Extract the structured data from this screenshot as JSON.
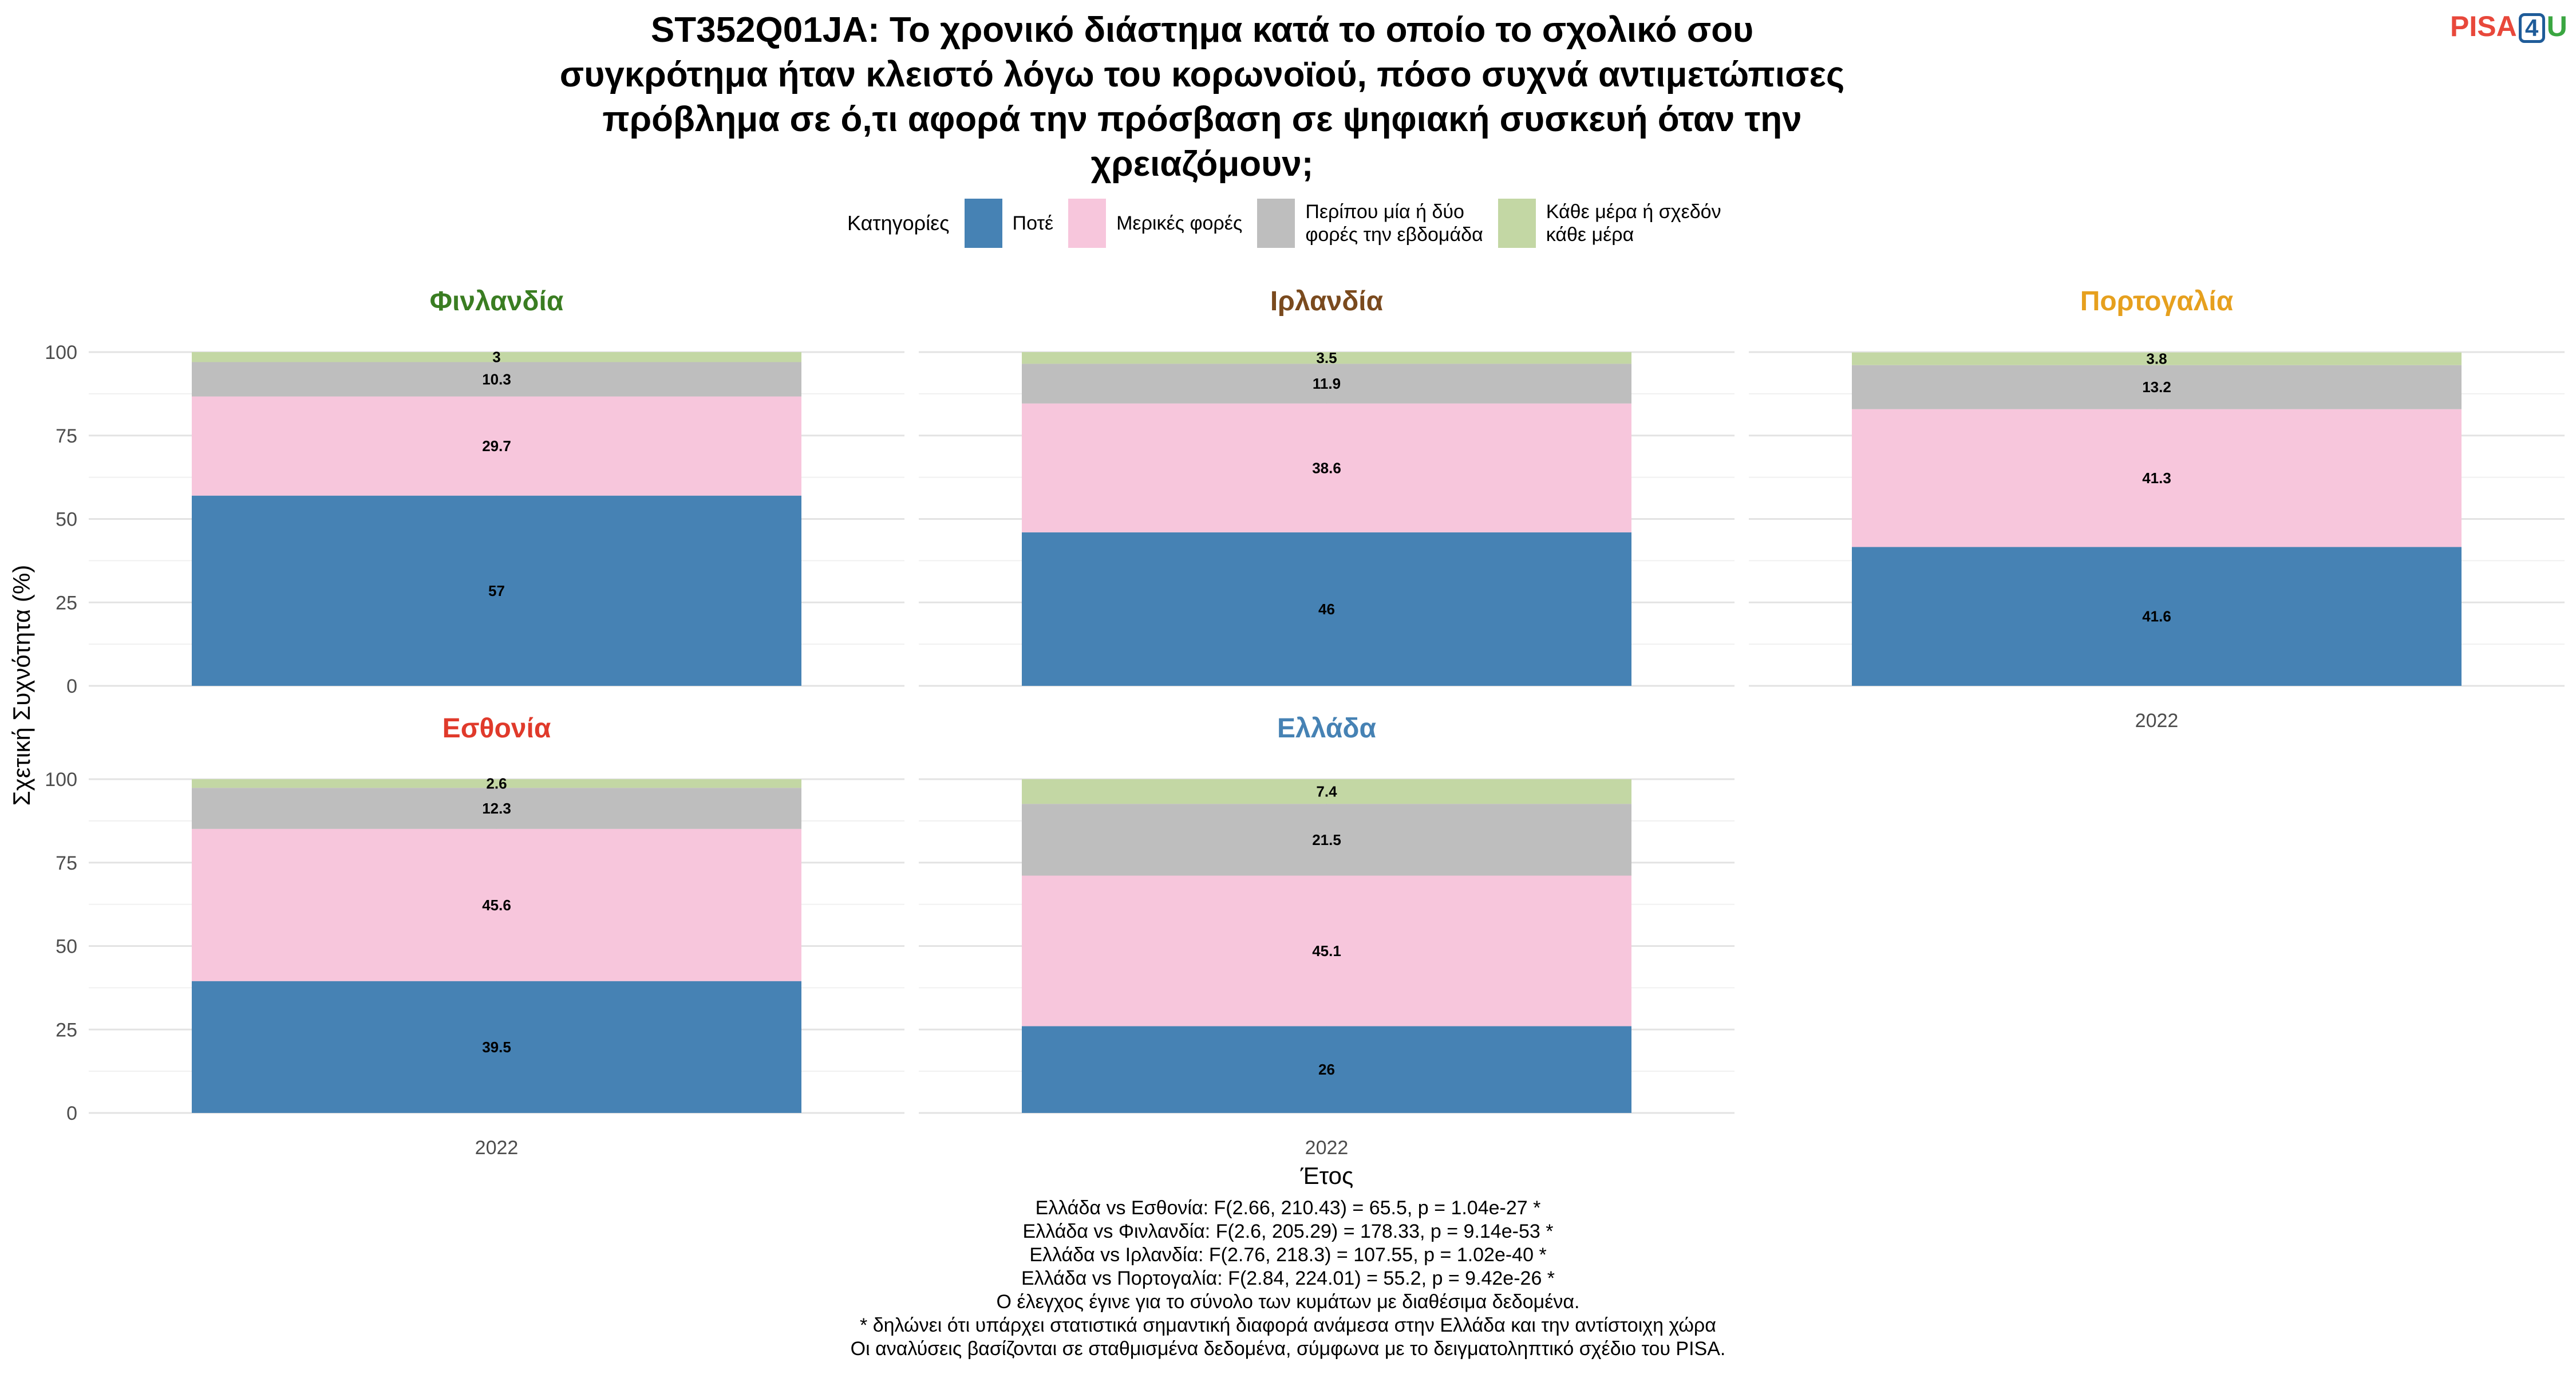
{
  "title_lines": [
    "ST352Q01JA: Το χρονικό διάστημα κατά το οποίο το σχολικό σου",
    "συγκρότημα ήταν κλειστό λόγω του κορωνοϊού, πόσο συχνά αντιμετώπισες",
    "πρόβλημα σε ό,τι αφορά την πρόσβαση σε ψηφιακή συσκευή όταν την",
    "χρειαζόμουν;"
  ],
  "logo": {
    "left": "PISA",
    "box": "4",
    "right": "U"
  },
  "legend": {
    "title": "Κατηγορίες",
    "items": [
      {
        "label": "Ποτέ",
        "color": "#4682b4"
      },
      {
        "label": "Μερικές φορές",
        "color": "#f7c6dc"
      },
      {
        "label": "Περίπου μία ή δύο\nφορές την εβδομάδα",
        "color": "#bebebe"
      },
      {
        "label": "Κάθε μέρα ή σχεδόν\nκάθε μέρα",
        "color": "#c3d7a4"
      }
    ]
  },
  "chart_data": {
    "type": "bar",
    "stacked": true,
    "x_category": "2022",
    "ylabel": "Σχετική Συχνότητα (%)",
    "xlabel": "Έτος",
    "ylim": [
      0,
      100
    ],
    "yticks": [
      0,
      25,
      50,
      75,
      100
    ],
    "series_names": [
      "Ποτέ",
      "Μερικές φορές",
      "Περίπου μία ή δύο φορές την εβδομάδα",
      "Κάθε μέρα ή σχεδόν κάθε μέρα"
    ],
    "panels": [
      {
        "name": "Φινλανδία",
        "title_color": "#3a7d22",
        "values": [
          57,
          29.7,
          10.3,
          3
        ]
      },
      {
        "name": "Ιρλανδία",
        "title_color": "#7a4a1e",
        "values": [
          46,
          38.6,
          11.9,
          3.5
        ]
      },
      {
        "name": "Πορτογαλία",
        "title_color": "#e6a01e",
        "values": [
          41.6,
          41.3,
          13.2,
          3.8
        ]
      },
      {
        "name": "Εσθονία",
        "title_color": "#e03a2b",
        "values": [
          39.5,
          45.6,
          12.3,
          2.6
        ]
      },
      {
        "name": "Ελλάδα",
        "title_color": "#4682b4",
        "values": [
          26,
          45.1,
          21.5,
          7.4
        ]
      }
    ]
  },
  "footnotes": [
    "Ελλάδα vs Εσθονία: F(2.66, 210.43) = 65.5, p = 1.04e-27 *",
    "Ελλάδα vs Φινλανδία: F(2.6, 205.29) = 178.33, p = 9.14e-53 *",
    "Ελλάδα vs Ιρλανδία: F(2.76, 218.3) = 107.55, p = 1.02e-40 *",
    "Ελλάδα vs Πορτογαλία: F(2.84, 224.01) = 55.2, p = 9.42e-26 *",
    "Ο έλεγχος έγινε για το σύνολο των κυμάτων με διαθέσιμα δεδομένα.",
    "* δηλώνει ότι υπάρχει στατιστικά σημαντική διαφορά ανάμεσα στην Ελλάδα και την αντίστοιχη χώρα",
    "Οι αναλύσεις βασίζονται σε σταθμισμένα δεδομένα, σύμφωνα με το δειγματοληπτικό σχέδιο του PISA."
  ]
}
